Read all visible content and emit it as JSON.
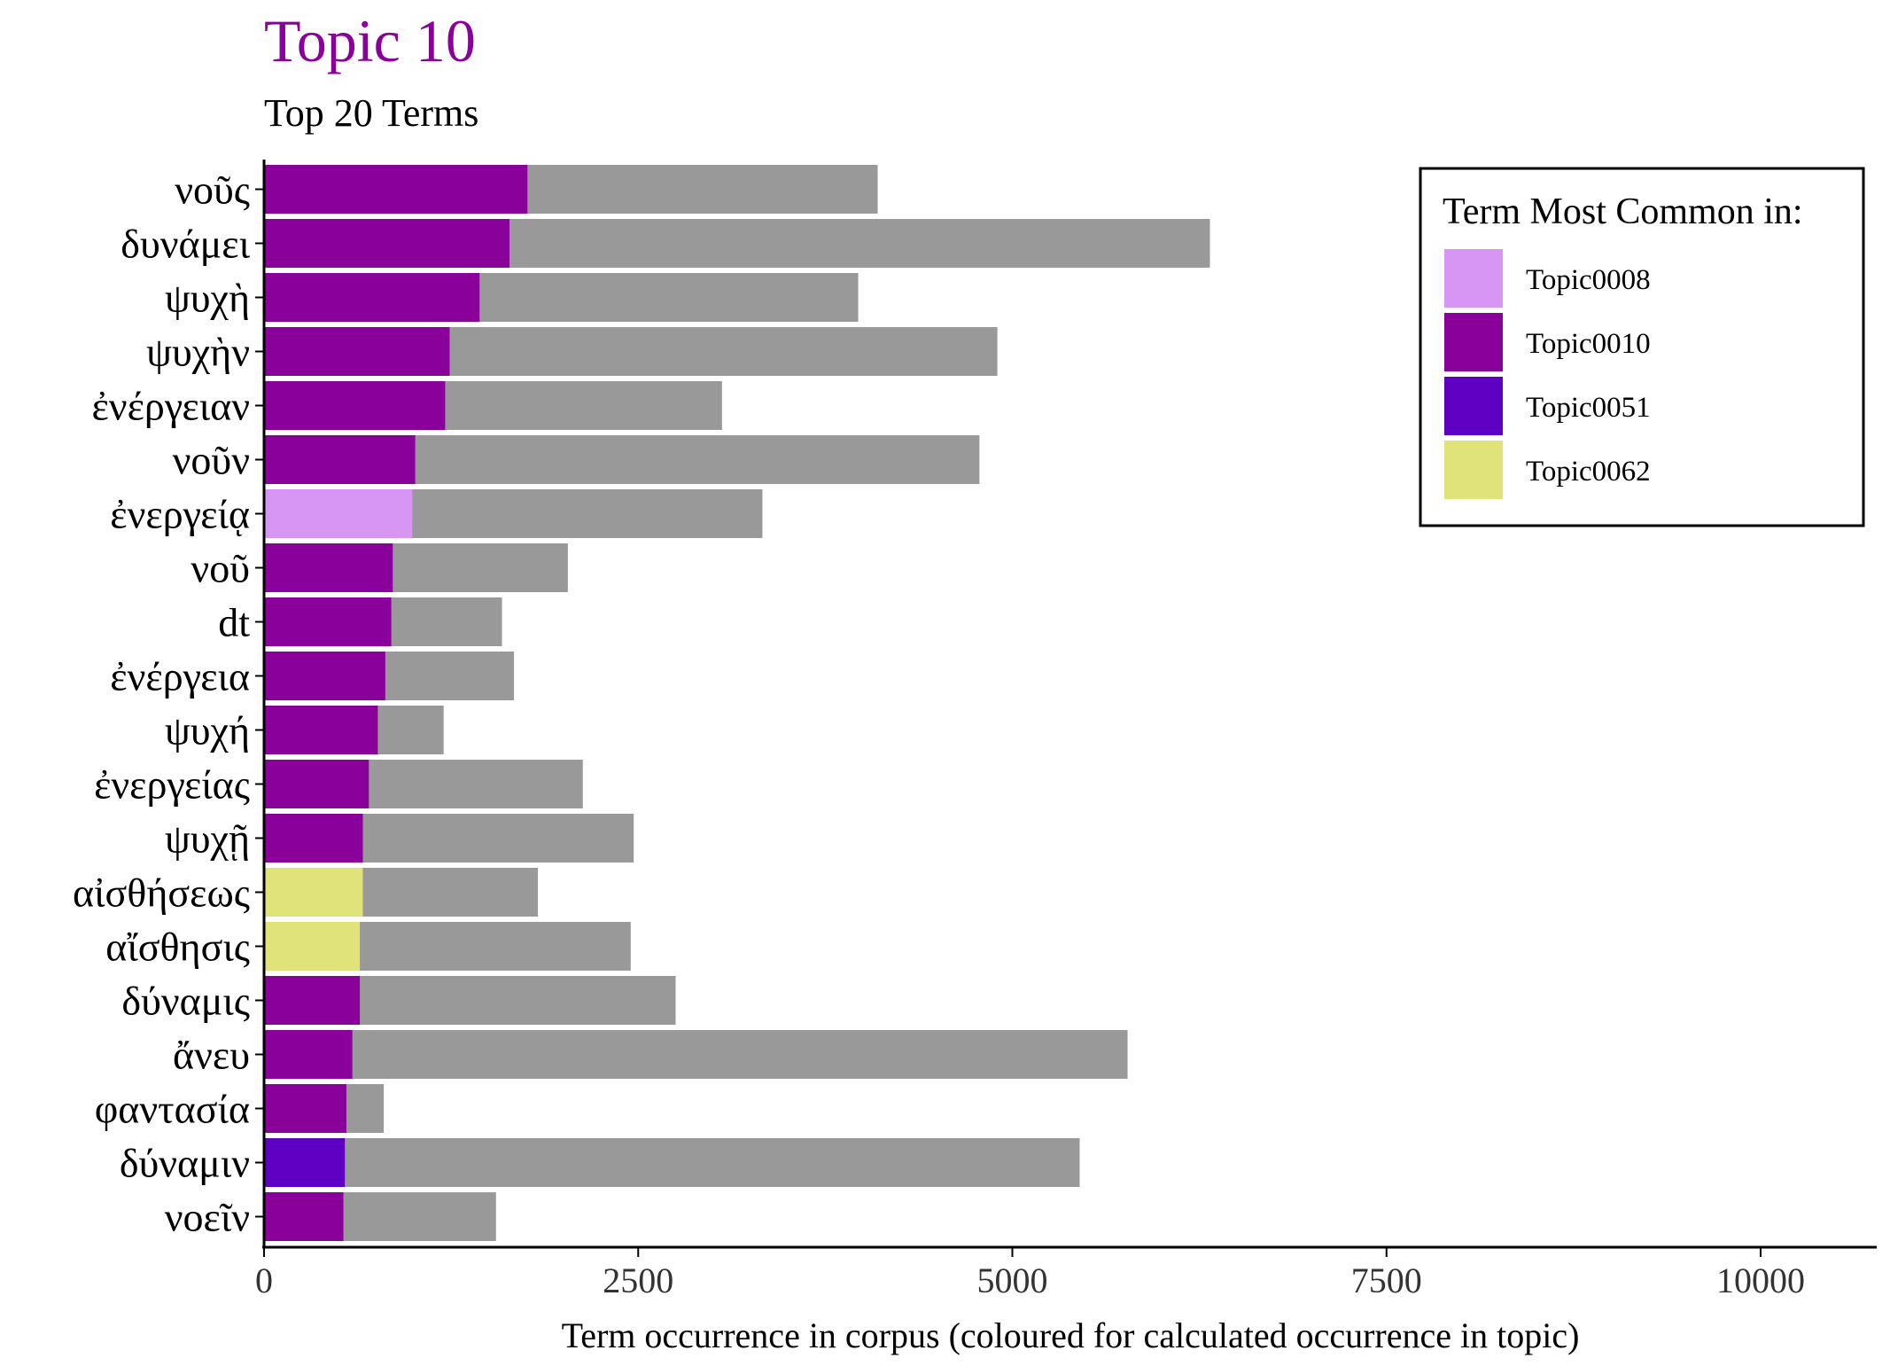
{
  "chart_data": {
    "type": "bar",
    "orientation": "horizontal",
    "stacked": true,
    "title": "Topic 10",
    "subtitle": "Top 20 Terms",
    "xlabel": "Term occurrence in corpus (coloured for calculated occurrence in topic)",
    "ylabel": "",
    "xlim": [
      0,
      10800
    ],
    "xticks": [
      0,
      2500,
      5000,
      7500,
      10000
    ],
    "grid": false,
    "legend": {
      "title": "Term Most Common in:",
      "placement": "top-right",
      "entries": [
        {
          "name": "Topic0008",
          "color": "#d896f4"
        },
        {
          "name": "Topic0010",
          "color": "#8a009a"
        },
        {
          "name": "Topic0051",
          "color": "#5e00c2"
        },
        {
          "name": "Topic0062",
          "color": "#e0e37a"
        }
      ]
    },
    "colors": {
      "corpus": "#999999",
      "title": "#8a009a"
    },
    "terms": [
      {
        "term": "νοῦς",
        "topic_count": 1760,
        "corpus_total": 4100,
        "topic": "Topic0010"
      },
      {
        "term": "δυνάμει",
        "topic_count": 1640,
        "corpus_total": 6320,
        "topic": "Topic0010"
      },
      {
        "term": "ψυχὴ",
        "topic_count": 1440,
        "corpus_total": 3970,
        "topic": "Topic0010"
      },
      {
        "term": "ψυχὴν",
        "topic_count": 1240,
        "corpus_total": 4900,
        "topic": "Topic0010"
      },
      {
        "term": "ἐνέργειαν",
        "topic_count": 1210,
        "corpus_total": 3060,
        "topic": "Topic0010"
      },
      {
        "term": "νοῦν",
        "topic_count": 1010,
        "corpus_total": 4780,
        "topic": "Topic0010"
      },
      {
        "term": "ἐνεργείᾳ",
        "topic_count": 990,
        "corpus_total": 3330,
        "topic": "Topic0008"
      },
      {
        "term": "νοῦ",
        "topic_count": 860,
        "corpus_total": 2030,
        "topic": "Topic0010"
      },
      {
        "term": "dt",
        "topic_count": 850,
        "corpus_total": 1590,
        "topic": "Topic0010"
      },
      {
        "term": "ἐνέργεια",
        "topic_count": 810,
        "corpus_total": 1670,
        "topic": "Topic0010"
      },
      {
        "term": "ψυχή",
        "topic_count": 760,
        "corpus_total": 1200,
        "topic": "Topic0010"
      },
      {
        "term": "ἐνεργείας",
        "topic_count": 700,
        "corpus_total": 2130,
        "topic": "Topic0010"
      },
      {
        "term": "ψυχῇ",
        "topic_count": 660,
        "corpus_total": 2470,
        "topic": "Topic0010"
      },
      {
        "term": "αἰσθήσεως",
        "topic_count": 660,
        "corpus_total": 1830,
        "topic": "Topic0062"
      },
      {
        "term": "αἴσθησις",
        "topic_count": 640,
        "corpus_total": 2450,
        "topic": "Topic0062"
      },
      {
        "term": "δύναμις",
        "topic_count": 640,
        "corpus_total": 2750,
        "topic": "Topic0010"
      },
      {
        "term": "ἄνευ",
        "topic_count": 590,
        "corpus_total": 5770,
        "topic": "Topic0010"
      },
      {
        "term": "φαντασία",
        "topic_count": 550,
        "corpus_total": 800,
        "topic": "Topic0010"
      },
      {
        "term": "δύναμιν",
        "topic_count": 540,
        "corpus_total": 5450,
        "topic": "Topic0051"
      },
      {
        "term": "νοεῖν",
        "topic_count": 530,
        "corpus_total": 1550,
        "topic": "Topic0010"
      }
    ]
  }
}
